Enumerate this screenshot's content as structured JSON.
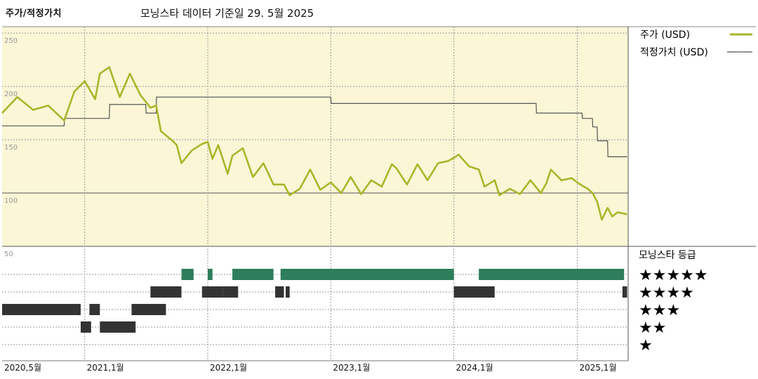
{
  "header": {
    "left_title": "주가/적정가치",
    "center_title": "모닝스타 데이터 기준일 29. 5월 2025"
  },
  "colors": {
    "price": "#aab52a",
    "fair": "#555555",
    "panel_bg": "#faf6d6",
    "star_bar": "#2e7d5b",
    "other_bar": "#333333"
  },
  "chart_data": [
    {
      "type": "line",
      "ylim": [
        50,
        256
      ],
      "yticks": [
        "250",
        "200",
        "150",
        "100"
      ],
      "series": [
        {
          "name": "주가 (USD)",
          "x": [
            "2020-05-01",
            "2020-06-15",
            "2020-08-01",
            "2020-09-15",
            "2020-11-01",
            "2020-12-01",
            "2021-01-01",
            "2021-02-01",
            "2021-02-15",
            "2021-03-15",
            "2021-04-15",
            "2021-05-15",
            "2021-06-15",
            "2021-07-15",
            "2021-08-01",
            "2021-08-15",
            "2021-09-15",
            "2021-10-01",
            "2021-10-15",
            "2021-11-15",
            "2021-12-15",
            "2022-01-01",
            "2022-01-15",
            "2022-02-01",
            "2022-03-01",
            "2022-03-15",
            "2022-04-15",
            "2022-05-15",
            "2022-06-15",
            "2022-07-15",
            "2022-08-15",
            "2022-09-01",
            "2022-10-01",
            "2022-11-01",
            "2022-12-01",
            "2023-01-01",
            "2023-02-01",
            "2023-03-01",
            "2023-04-01",
            "2023-05-01",
            "2023-06-01",
            "2023-07-01",
            "2023-07-15",
            "2023-08-15",
            "2023-09-15",
            "2023-10-15",
            "2023-11-15",
            "2023-12-15",
            "2024-01-01",
            "2024-01-15",
            "2024-02-15",
            "2024-03-15",
            "2024-04-01",
            "2024-05-01",
            "2024-05-15",
            "2024-06-15",
            "2024-07-15",
            "2024-08-15",
            "2024-09-15",
            "2024-10-01",
            "2024-10-15",
            "2024-11-15",
            "2024-12-15",
            "2025-01-01",
            "2025-01-15",
            "2025-02-01",
            "2025-02-15",
            "2025-03-01",
            "2025-03-15",
            "2025-04-01",
            "2025-04-15",
            "2025-05-01",
            "2025-05-29"
          ],
          "y": [
            175,
            190,
            178,
            182,
            168,
            195,
            205,
            188,
            212,
            218,
            190,
            212,
            192,
            180,
            182,
            158,
            150,
            145,
            128,
            140,
            146,
            148,
            132,
            145,
            118,
            135,
            142,
            115,
            128,
            108,
            108,
            98,
            104,
            122,
            103,
            110,
            100,
            115,
            99,
            112,
            106,
            127,
            123,
            108,
            127,
            112,
            128,
            130,
            133,
            136,
            125,
            122,
            106,
            112,
            98,
            104,
            99,
            112,
            100,
            109,
            122,
            112,
            114,
            110,
            107,
            104,
            100,
            92,
            75,
            86,
            78,
            82,
            80
          ]
        },
        {
          "name": "적정가치 (USD)",
          "x": [
            "2020-05-01",
            "2020-11-01",
            "2020-11-02",
            "2021-03-15",
            "2021-03-16",
            "2021-07-01",
            "2021-07-02",
            "2021-08-01",
            "2021-08-02",
            "2023-01-01",
            "2023-01-02",
            "2024-09-01",
            "2024-09-02",
            "2025-01-15",
            "2025-01-16",
            "2025-02-15",
            "2025-02-16",
            "2025-03-01",
            "2025-03-02",
            "2025-04-01",
            "2025-04-02",
            "2025-05-29"
          ],
          "y": [
            163,
            163,
            170,
            170,
            183,
            183,
            175,
            175,
            190,
            190,
            184,
            184,
            175,
            175,
            170,
            170,
            162,
            162,
            149,
            149,
            134,
            134
          ]
        }
      ]
    },
    {
      "type": "heatmap",
      "title": "모닝스타 등급",
      "ytick_label": "50",
      "rows": [
        {
          "label": "★★★★★",
          "ranges": [
            [
              "2021-10-15",
              "2021-11-20"
            ],
            [
              "2022-01-01",
              "2022-01-15"
            ],
            [
              "2022-03-15",
              "2022-07-15"
            ],
            [
              "2022-08-05",
              "2024-01-01"
            ],
            [
              "2024-03-15",
              "2025-05-20"
            ]
          ]
        },
        {
          "label": "★★★★",
          "ranges": [
            [
              "2021-07-15",
              "2021-10-15"
            ],
            [
              "2021-12-15",
              "2022-02-15"
            ],
            [
              "2022-02-15",
              "2022-04-01"
            ],
            [
              "2022-07-20",
              "2022-08-15"
            ],
            [
              "2022-08-20",
              "2022-09-01"
            ],
            [
              "2024-01-01",
              "2024-05-01"
            ],
            [
              "2025-05-15",
              "2025-05-29"
            ]
          ]
        },
        {
          "label": "★★★",
          "ranges": [
            [
              "2020-05-01",
              "2020-12-20"
            ],
            [
              "2021-01-15",
              "2021-02-15"
            ],
            [
              "2021-05-20",
              "2021-08-30"
            ]
          ]
        },
        {
          "label": "★★",
          "ranges": [
            [
              "2020-12-20",
              "2021-01-20"
            ],
            [
              "2021-02-15",
              "2021-06-01"
            ]
          ]
        },
        {
          "label": "★",
          "ranges": []
        }
      ]
    }
  ],
  "legend": {
    "price": "주가 (USD)",
    "fair": "적정가치 (USD)",
    "rating_title": "모닝스타 등급"
  },
  "xaxis": {
    "domain": [
      "2020-05-01",
      "2025-06-01"
    ],
    "ticks": [
      {
        "date": "2020-05-01",
        "label": "2020,5월"
      },
      {
        "date": "2021-01-01",
        "label": "2021,1월"
      },
      {
        "date": "2022-01-01",
        "label": "2022,1월"
      },
      {
        "date": "2023-01-01",
        "label": "2023,1월"
      },
      {
        "date": "2024-01-01",
        "label": "2024,1월"
      },
      {
        "date": "2025-01-01",
        "label": "2025,1월"
      }
    ]
  }
}
